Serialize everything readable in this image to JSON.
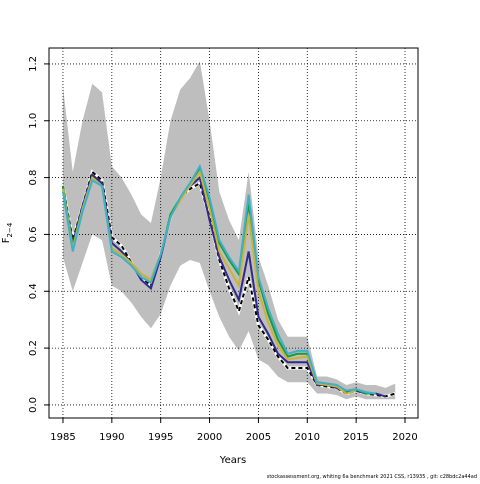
{
  "chart_data": {
    "type": "line",
    "xlabel": "Years",
    "ylabel": "F",
    "ylabel_sub": "2−4",
    "footer": "stockassessment.org, whiting 6a benchmark 2021 CSS, r13935 , git: c28bdc2a44ad",
    "x": [
      1985,
      1986,
      1987,
      1988,
      1989,
      1990,
      1991,
      1992,
      1993,
      1994,
      1995,
      1996,
      1997,
      1998,
      1999,
      2000,
      2001,
      2002,
      2003,
      2004,
      2005,
      2006,
      2007,
      2008,
      2009,
      2010,
      2011,
      2012,
      2013,
      2014,
      2015,
      2016,
      2017,
      2018,
      2019
    ],
    "xlim": [
      1983.57,
      2021.33
    ],
    "xticks": [
      1985,
      1990,
      1995,
      2000,
      2005,
      2010,
      2015,
      2020
    ],
    "ylim": [
      -0.046,
      1.256
    ],
    "yticks": [
      {
        "value": 0,
        "label": "0.0"
      },
      0.2,
      0.4,
      0.6,
      0.8,
      {
        "value": 1,
        "label": "1.0"
      },
      1.2
    ],
    "grid": true,
    "band": {
      "color": "#bebebe",
      "upper": [
        1.12,
        0.82,
        1.0,
        1.13,
        1.1,
        0.84,
        0.8,
        0.74,
        0.67,
        0.64,
        0.8,
        1.0,
        1.11,
        1.15,
        1.21,
        1.0,
        0.75,
        0.65,
        0.58,
        0.82,
        0.52,
        0.42,
        0.3,
        0.24,
        0.24,
        0.24,
        0.1,
        0.1,
        0.09,
        0.07,
        0.08,
        0.07,
        0.07,
        0.06,
        0.075
      ],
      "lower": [
        0.52,
        0.4,
        0.5,
        0.6,
        0.58,
        0.42,
        0.4,
        0.36,
        0.31,
        0.27,
        0.32,
        0.42,
        0.49,
        0.51,
        0.5,
        0.4,
        0.31,
        0.24,
        0.19,
        0.26,
        0.16,
        0.14,
        0.1,
        0.08,
        0.08,
        0.08,
        0.04,
        0.04,
        0.035,
        0.02,
        0.03,
        0.02,
        0.02,
        0.02,
        0.02
      ]
    },
    "series": [
      {
        "color": "#000000",
        "dash": true,
        "values": [
          0.77,
          0.58,
          0.7,
          0.82,
          0.79,
          0.59,
          0.56,
          0.5,
          0.45,
          0.42,
          0.53,
          0.66,
          0.73,
          0.76,
          0.78,
          0.66,
          0.51,
          0.41,
          0.33,
          0.45,
          0.28,
          0.23,
          0.17,
          0.13,
          0.13,
          0.13,
          0.07,
          0.065,
          0.06,
          0.04,
          0.05,
          0.04,
          0.035,
          0.03,
          0.04
        ]
      },
      {
        "color": "#2f2a8c",
        "values": [
          0.76,
          0.57,
          0.7,
          0.81,
          0.78,
          0.57,
          0.54,
          0.5,
          0.44,
          0.41,
          0.52,
          0.66,
          0.73,
          0.77,
          0.8,
          0.65,
          0.52,
          0.44,
          0.37,
          0.54,
          0.31,
          0.25,
          0.18,
          0.15,
          0.15,
          0.15,
          0.07,
          0.07,
          0.06,
          0.045,
          0.05,
          0.04,
          0.04,
          0.03,
          null
        ]
      },
      {
        "color": "#1a9a3c",
        "values": [
          0.77,
          0.56,
          0.69,
          0.8,
          0.77,
          0.55,
          0.53,
          0.5,
          0.46,
          0.44,
          0.53,
          0.67,
          0.73,
          0.78,
          0.83,
          0.72,
          0.57,
          0.51,
          0.46,
          0.71,
          0.44,
          0.32,
          0.23,
          0.17,
          0.18,
          0.18,
          0.08,
          0.075,
          0.07,
          0.05,
          0.055,
          0.04,
          0.04,
          null,
          null
        ]
      },
      {
        "color": "#c9b43a",
        "values": [
          0.76,
          0.55,
          0.69,
          0.8,
          0.77,
          0.55,
          0.53,
          0.5,
          0.46,
          0.44,
          0.53,
          0.66,
          0.72,
          0.77,
          0.82,
          0.69,
          0.54,
          0.48,
          0.42,
          0.67,
          0.4,
          0.29,
          0.21,
          0.16,
          0.165,
          0.17,
          0.075,
          0.07,
          0.065,
          0.04,
          0.05,
          null,
          null,
          null,
          null
        ]
      },
      {
        "color": "#3fb0c8",
        "values": [
          0.75,
          0.54,
          0.68,
          0.79,
          0.77,
          0.54,
          0.52,
          0.49,
          0.45,
          0.43,
          0.53,
          0.66,
          0.73,
          0.78,
          0.84,
          0.73,
          0.58,
          0.52,
          0.47,
          0.74,
          0.45,
          0.34,
          0.25,
          0.18,
          0.19,
          0.19,
          0.08,
          0.075,
          0.07,
          0.05,
          0.055,
          0.045,
          0.04,
          null,
          null
        ]
      }
    ]
  }
}
